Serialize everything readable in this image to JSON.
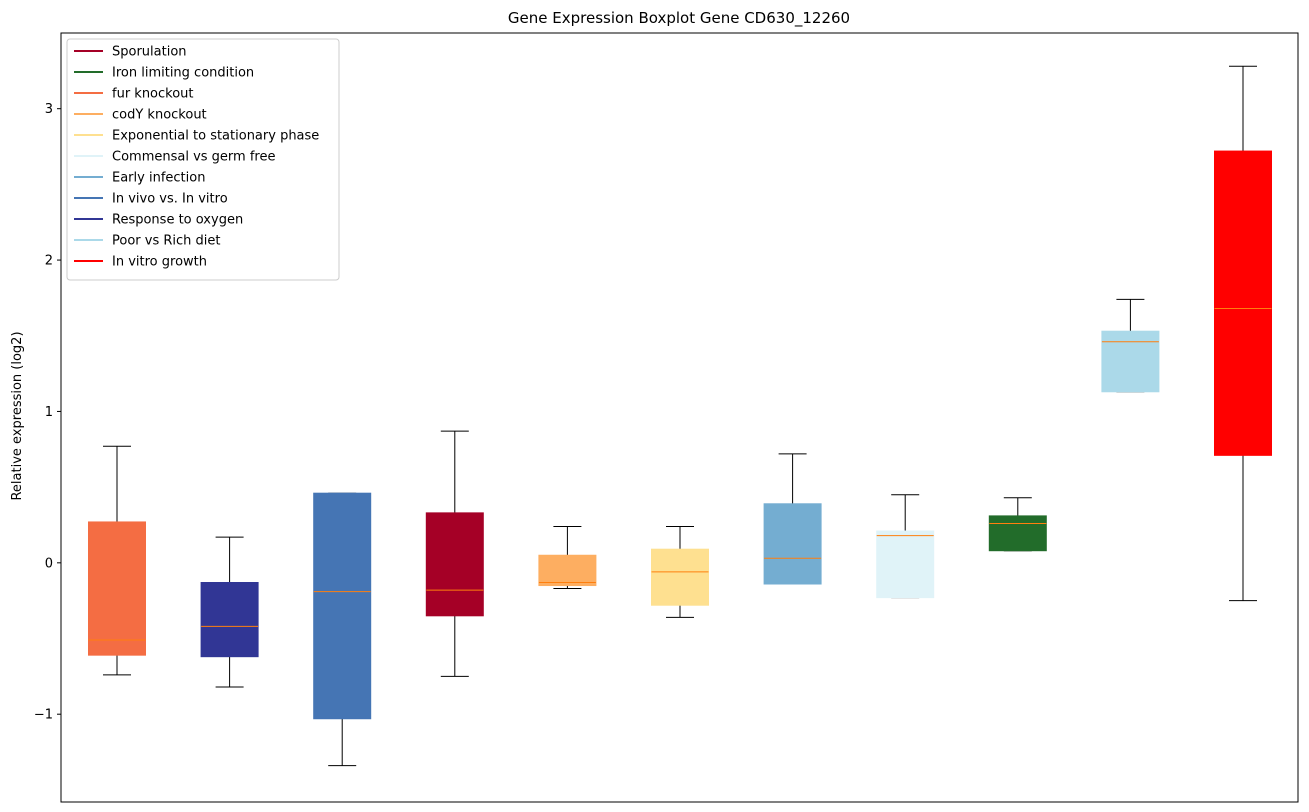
{
  "chart_data": {
    "type": "boxplot",
    "title": "Gene Expression Boxplot Gene CD630_12260",
    "xlabel": "",
    "ylabel": "Relative expression (log2)",
    "ylim": [
      -1.58,
      3.5
    ],
    "yticks": [
      -1,
      0,
      1,
      2,
      3
    ],
    "ytick_labels": [
      "−1",
      "0",
      "1",
      "2",
      "3"
    ],
    "median_color": "#ff7f0e",
    "legend": {
      "location": "upper-left",
      "entries": [
        {
          "label": "Sporulation",
          "color": "#a50026"
        },
        {
          "label": "Iron limiting condition",
          "color": "#226c2a"
        },
        {
          "label": "fur knockout",
          "color": "#f46d43"
        },
        {
          "label": "codY knockout",
          "color": "#fdae61"
        },
        {
          "label": "Exponential to stationary phase",
          "color": "#fee090"
        },
        {
          "label": "Commensal vs germ free",
          "color": "#e0f3f8"
        },
        {
          "label": "Early infection",
          "color": "#74add1"
        },
        {
          "label": "In vivo vs. In vitro",
          "color": "#4575b4"
        },
        {
          "label": "Response to oxygen",
          "color": "#313695"
        },
        {
          "label": "Poor vs Rich diet",
          "color": "#abd9e9"
        },
        {
          "label": "In vitro growth",
          "color": "#ff0000"
        }
      ]
    },
    "boxes": [
      {
        "group": "fur knockout",
        "color": "#f46d43",
        "whisker_low": -0.74,
        "q1": -0.61,
        "median": -0.51,
        "q3": 0.27,
        "whisker_high": 0.77
      },
      {
        "group": "Response to oxygen",
        "color": "#313695",
        "whisker_low": -0.82,
        "q1": -0.62,
        "median": -0.42,
        "q3": -0.13,
        "whisker_high": 0.17
      },
      {
        "group": "In vivo vs. In vitro",
        "color": "#4575b4",
        "whisker_low": -1.34,
        "q1": -1.03,
        "median": -0.19,
        "q3": 0.46,
        "whisker_high": 0.46
      },
      {
        "group": "Sporulation",
        "color": "#a50026",
        "whisker_low": -0.75,
        "q1": -0.35,
        "median": -0.18,
        "q3": 0.33,
        "whisker_high": 0.87
      },
      {
        "group": "codY knockout",
        "color": "#fdae61",
        "whisker_low": -0.17,
        "q1": -0.15,
        "median": -0.13,
        "q3": 0.05,
        "whisker_high": 0.24
      },
      {
        "group": "Exponential to stationary phase",
        "color": "#fee090",
        "whisker_low": -0.36,
        "q1": -0.28,
        "median": -0.06,
        "q3": 0.09,
        "whisker_high": 0.24
      },
      {
        "group": "Early infection",
        "color": "#74add1",
        "whisker_low": -0.14,
        "q1": -0.14,
        "median": 0.03,
        "q3": 0.39,
        "whisker_high": 0.72
      },
      {
        "group": "Commensal vs germ free",
        "color": "#e0f3f8",
        "whisker_low": -0.23,
        "q1": -0.23,
        "median": 0.18,
        "q3": 0.21,
        "whisker_high": 0.45
      },
      {
        "group": "Iron limiting condition",
        "color": "#226c2a",
        "whisker_low": 0.08,
        "q1": 0.08,
        "median": 0.26,
        "q3": 0.31,
        "whisker_high": 0.43
      },
      {
        "group": "Poor vs Rich diet",
        "color": "#abd9e9",
        "whisker_low": 1.13,
        "q1": 1.13,
        "median": 1.46,
        "q3": 1.53,
        "whisker_high": 1.74
      },
      {
        "group": "In vitro growth",
        "color": "#ff0000",
        "whisker_low": -0.25,
        "q1": 0.71,
        "median": 1.68,
        "q3": 2.72,
        "whisker_high": 3.28
      }
    ]
  }
}
